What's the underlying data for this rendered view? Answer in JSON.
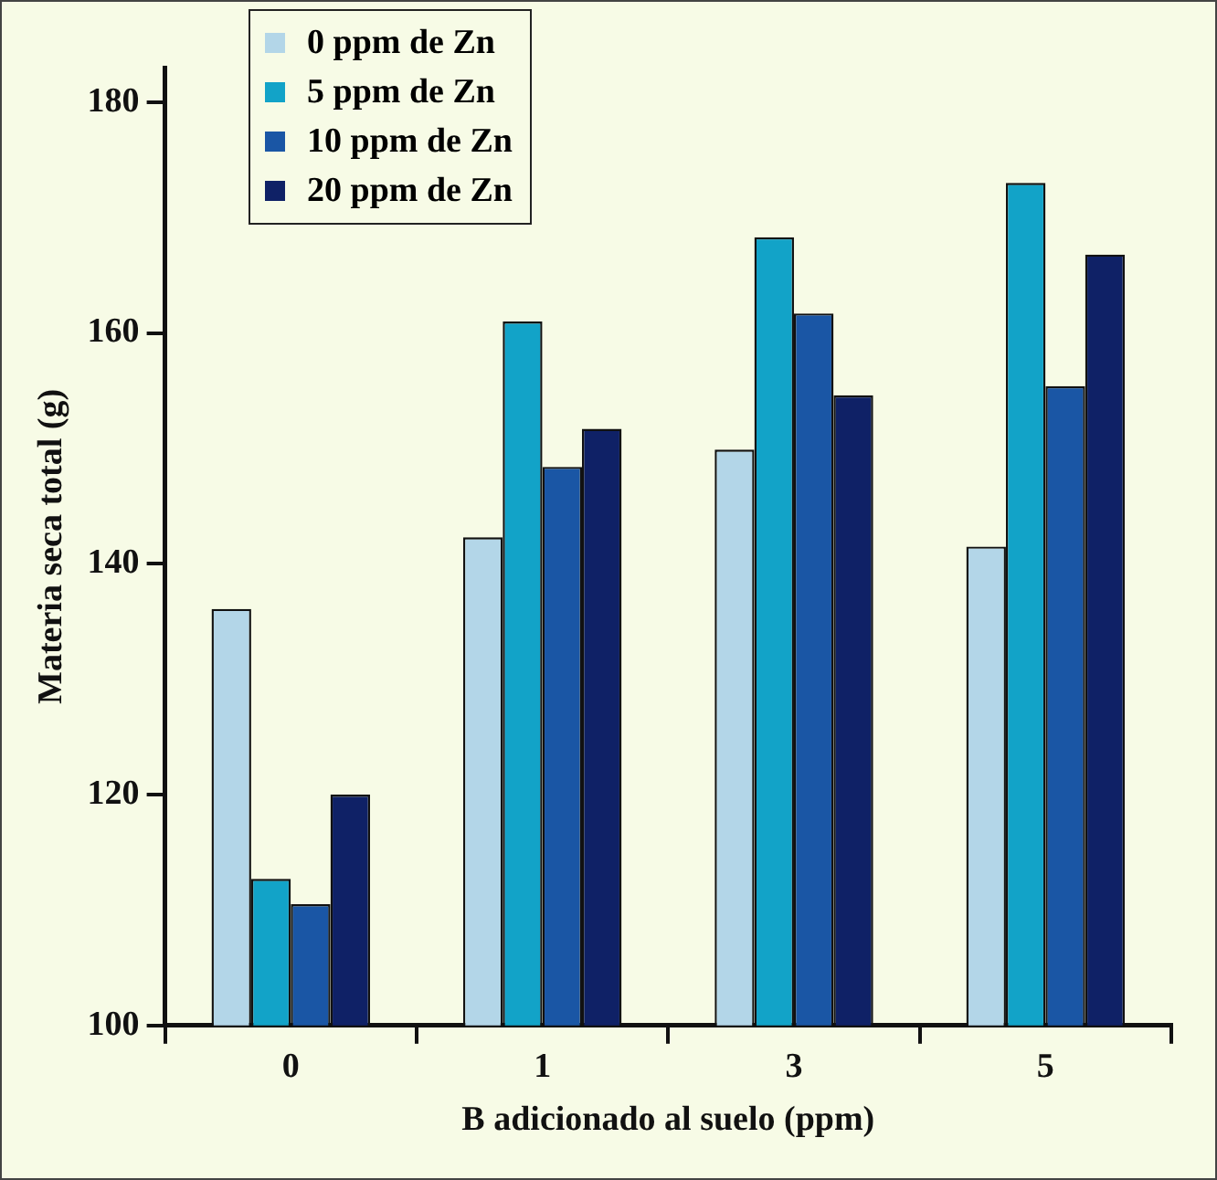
{
  "chart_data": {
    "type": "bar",
    "xlabel": "B adicionado al suelo (ppm)",
    "ylabel": "Materia seca total (g)",
    "categories": [
      "0",
      "1",
      "3",
      "5"
    ],
    "series": [
      {
        "name": "0 ppm de Zn",
        "color": "#b3d6e8",
        "values": [
          136.1,
          142.3,
          149.9,
          141.5
        ]
      },
      {
        "name": "5 ppm de Zn",
        "color": "#12a3c8",
        "values": [
          112.7,
          161,
          168.3,
          173
        ]
      },
      {
        "name": "10 ppm de Zn",
        "color": "#1a56a5",
        "values": [
          110.5,
          148.4,
          161.7,
          155.4
        ]
      },
      {
        "name": "20 ppm de Zn",
        "color": "#0f2166",
        "values": [
          120,
          151.7,
          154.6,
          166.8
        ]
      }
    ],
    "ylim": [
      100,
      183
    ],
    "yticks": [
      100,
      120,
      140,
      160,
      180
    ],
    "grid": false,
    "legend": "top left"
  }
}
